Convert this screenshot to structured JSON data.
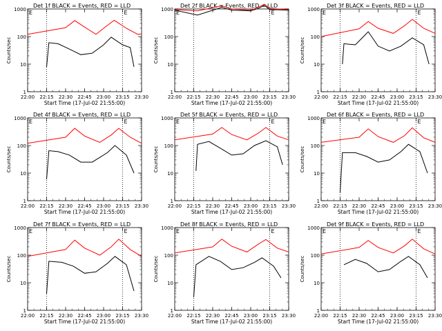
{
  "chart_data": {
    "type": "line",
    "ylabel": "Counts/sec",
    "xlabel": "Start Time (17-Jul-02 21:55:00)",
    "y_scale": "log",
    "ylim": [
      1,
      1000
    ],
    "y_ticks": [
      "1",
      "10",
      "100",
      "1000"
    ],
    "x_ticks": [
      "22:00",
      "22:15",
      "22:30",
      "22:45",
      "23:00",
      "23:15",
      "23:30"
    ],
    "corner_marks": [
      "E",
      "E"
    ],
    "series_colors": {
      "events": "#000000",
      "lld": "#ff0000"
    },
    "panels": [
      {
        "title": "Det 1f BLACK = Events, RED = LLD",
        "red": [
          [
            22.0,
            120
          ],
          [
            22.5,
            210
          ],
          [
            22.62,
            380
          ],
          [
            22.75,
            220
          ],
          [
            22.9,
            120
          ],
          [
            23.0,
            200
          ],
          [
            23.14,
            390
          ],
          [
            23.3,
            200
          ],
          [
            23.45,
            120
          ],
          [
            23.5,
            125
          ]
        ],
        "black": [
          [
            22.25,
            8
          ],
          [
            22.28,
            60
          ],
          [
            22.4,
            55
          ],
          [
            22.55,
            35
          ],
          [
            22.7,
            22
          ],
          [
            22.85,
            25
          ],
          [
            23.0,
            50
          ],
          [
            23.1,
            95
          ],
          [
            23.25,
            50
          ],
          [
            23.35,
            40
          ],
          [
            23.4,
            8
          ]
        ]
      },
      {
        "title": "Det 2f BLACK = Events, RED = LLD",
        "red": [
          [
            22.0,
            950
          ],
          [
            22.3,
            850
          ],
          [
            22.62,
            1300
          ],
          [
            22.75,
            1000
          ],
          [
            23.0,
            900
          ],
          [
            23.1,
            1150
          ],
          [
            23.18,
            1500
          ],
          [
            23.25,
            1050
          ],
          [
            23.5,
            950
          ]
        ],
        "black": [
          [
            22.0,
            900
          ],
          [
            22.3,
            600
          ],
          [
            22.62,
            1150
          ],
          [
            22.75,
            900
          ],
          [
            23.0,
            850
          ],
          [
            23.1,
            1050
          ],
          [
            23.18,
            1350
          ],
          [
            23.25,
            950
          ],
          [
            23.5,
            900
          ]
        ]
      },
      {
        "title": "Det 3f BLACK = Events, RED = LLD",
        "red": [
          [
            22.0,
            100
          ],
          [
            22.5,
            190
          ],
          [
            22.62,
            350
          ],
          [
            22.75,
            200
          ],
          [
            22.95,
            130
          ],
          [
            23.1,
            250
          ],
          [
            23.2,
            420
          ],
          [
            23.35,
            200
          ],
          [
            23.5,
            130
          ]
        ],
        "black": [
          [
            22.28,
            10
          ],
          [
            22.3,
            55
          ],
          [
            22.45,
            50
          ],
          [
            22.55,
            95
          ],
          [
            22.62,
            150
          ],
          [
            22.75,
            45
          ],
          [
            22.9,
            30
          ],
          [
            23.05,
            45
          ],
          [
            23.2,
            90
          ],
          [
            23.35,
            50
          ],
          [
            23.42,
            10
          ]
        ]
      },
      {
        "title": "Det 4f BLACK = Events, RED = LLD",
        "red": [
          [
            22.0,
            120
          ],
          [
            22.5,
            200
          ],
          [
            22.62,
            420
          ],
          [
            22.75,
            220
          ],
          [
            22.95,
            130
          ],
          [
            23.1,
            240
          ],
          [
            23.2,
            420
          ],
          [
            23.35,
            200
          ],
          [
            23.5,
            120
          ]
        ],
        "black": [
          [
            22.25,
            6
          ],
          [
            22.28,
            65
          ],
          [
            22.4,
            60
          ],
          [
            22.55,
            45
          ],
          [
            22.7,
            25
          ],
          [
            22.85,
            25
          ],
          [
            23.05,
            55
          ],
          [
            23.15,
            100
          ],
          [
            23.3,
            45
          ],
          [
            23.4,
            10
          ]
        ]
      },
      {
        "title": "Det 5f BLACK = Events, RED = LLD",
        "red": [
          [
            22.0,
            160
          ],
          [
            22.5,
            260
          ],
          [
            22.62,
            450
          ],
          [
            22.75,
            250
          ],
          [
            22.95,
            160
          ],
          [
            23.1,
            280
          ],
          [
            23.2,
            450
          ],
          [
            23.35,
            220
          ],
          [
            23.5,
            160
          ]
        ],
        "black": [
          [
            22.28,
            12
          ],
          [
            22.3,
            110
          ],
          [
            22.45,
            140
          ],
          [
            22.6,
            80
          ],
          [
            22.75,
            45
          ],
          [
            22.9,
            50
          ],
          [
            23.05,
            100
          ],
          [
            23.2,
            150
          ],
          [
            23.35,
            90
          ],
          [
            23.42,
            20
          ]
        ]
      },
      {
        "title": "Det 6f BLACK = Events, RED = LLD",
        "red": [
          [
            22.0,
            130
          ],
          [
            22.5,
            200
          ],
          [
            22.62,
            400
          ],
          [
            22.75,
            210
          ],
          [
            22.95,
            130
          ],
          [
            23.1,
            230
          ],
          [
            23.2,
            440
          ],
          [
            23.35,
            190
          ],
          [
            23.5,
            130
          ]
        ],
        "black": [
          [
            22.25,
            2
          ],
          [
            22.28,
            55
          ],
          [
            22.45,
            55
          ],
          [
            22.6,
            40
          ],
          [
            22.75,
            25
          ],
          [
            22.9,
            30
          ],
          [
            23.05,
            60
          ],
          [
            23.15,
            110
          ],
          [
            23.3,
            60
          ],
          [
            23.4,
            10
          ]
        ]
      },
      {
        "title": "Det 7f BLACK = Events, RED = LLD",
        "red": [
          [
            22.0,
            90
          ],
          [
            22.5,
            160
          ],
          [
            22.62,
            350
          ],
          [
            22.75,
            180
          ],
          [
            22.95,
            100
          ],
          [
            23.1,
            200
          ],
          [
            23.2,
            380
          ],
          [
            23.35,
            160
          ],
          [
            23.5,
            90
          ]
        ],
        "black": [
          [
            22.25,
            4
          ],
          [
            22.28,
            60
          ],
          [
            22.45,
            55
          ],
          [
            22.6,
            40
          ],
          [
            22.75,
            22
          ],
          [
            22.9,
            25
          ],
          [
            23.05,
            50
          ],
          [
            23.15,
            90
          ],
          [
            23.3,
            45
          ],
          [
            23.4,
            5
          ]
        ]
      },
      {
        "title": "Det 8f BLACK = Events, RED = LLD",
        "red": [
          [
            22.0,
            120
          ],
          [
            22.5,
            200
          ],
          [
            22.62,
            380
          ],
          [
            22.75,
            210
          ],
          [
            22.95,
            130
          ],
          [
            23.1,
            250
          ],
          [
            23.2,
            370
          ],
          [
            23.35,
            180
          ],
          [
            23.5,
            130
          ]
        ],
        "black": [
          [
            22.25,
            3
          ],
          [
            22.28,
            45
          ],
          [
            22.45,
            90
          ],
          [
            22.6,
            60
          ],
          [
            22.75,
            30
          ],
          [
            22.9,
            35
          ],
          [
            23.05,
            55
          ],
          [
            23.15,
            80
          ],
          [
            23.3,
            40
          ],
          [
            23.4,
            15
          ]
        ]
      },
      {
        "title": "Det 9f BLACK = Events, RED = LLD",
        "red": [
          [
            22.0,
            110
          ],
          [
            22.5,
            190
          ],
          [
            22.62,
            340
          ],
          [
            22.75,
            190
          ],
          [
            22.95,
            120
          ],
          [
            23.1,
            220
          ],
          [
            23.2,
            380
          ],
          [
            23.35,
            170
          ],
          [
            23.5,
            110
          ]
        ],
        "black": [
          [
            22.3,
            45
          ],
          [
            22.45,
            70
          ],
          [
            22.6,
            50
          ],
          [
            22.75,
            25
          ],
          [
            22.9,
            30
          ],
          [
            23.05,
            60
          ],
          [
            23.15,
            90
          ],
          [
            23.3,
            45
          ],
          [
            23.4,
            15
          ]
        ]
      }
    ]
  }
}
